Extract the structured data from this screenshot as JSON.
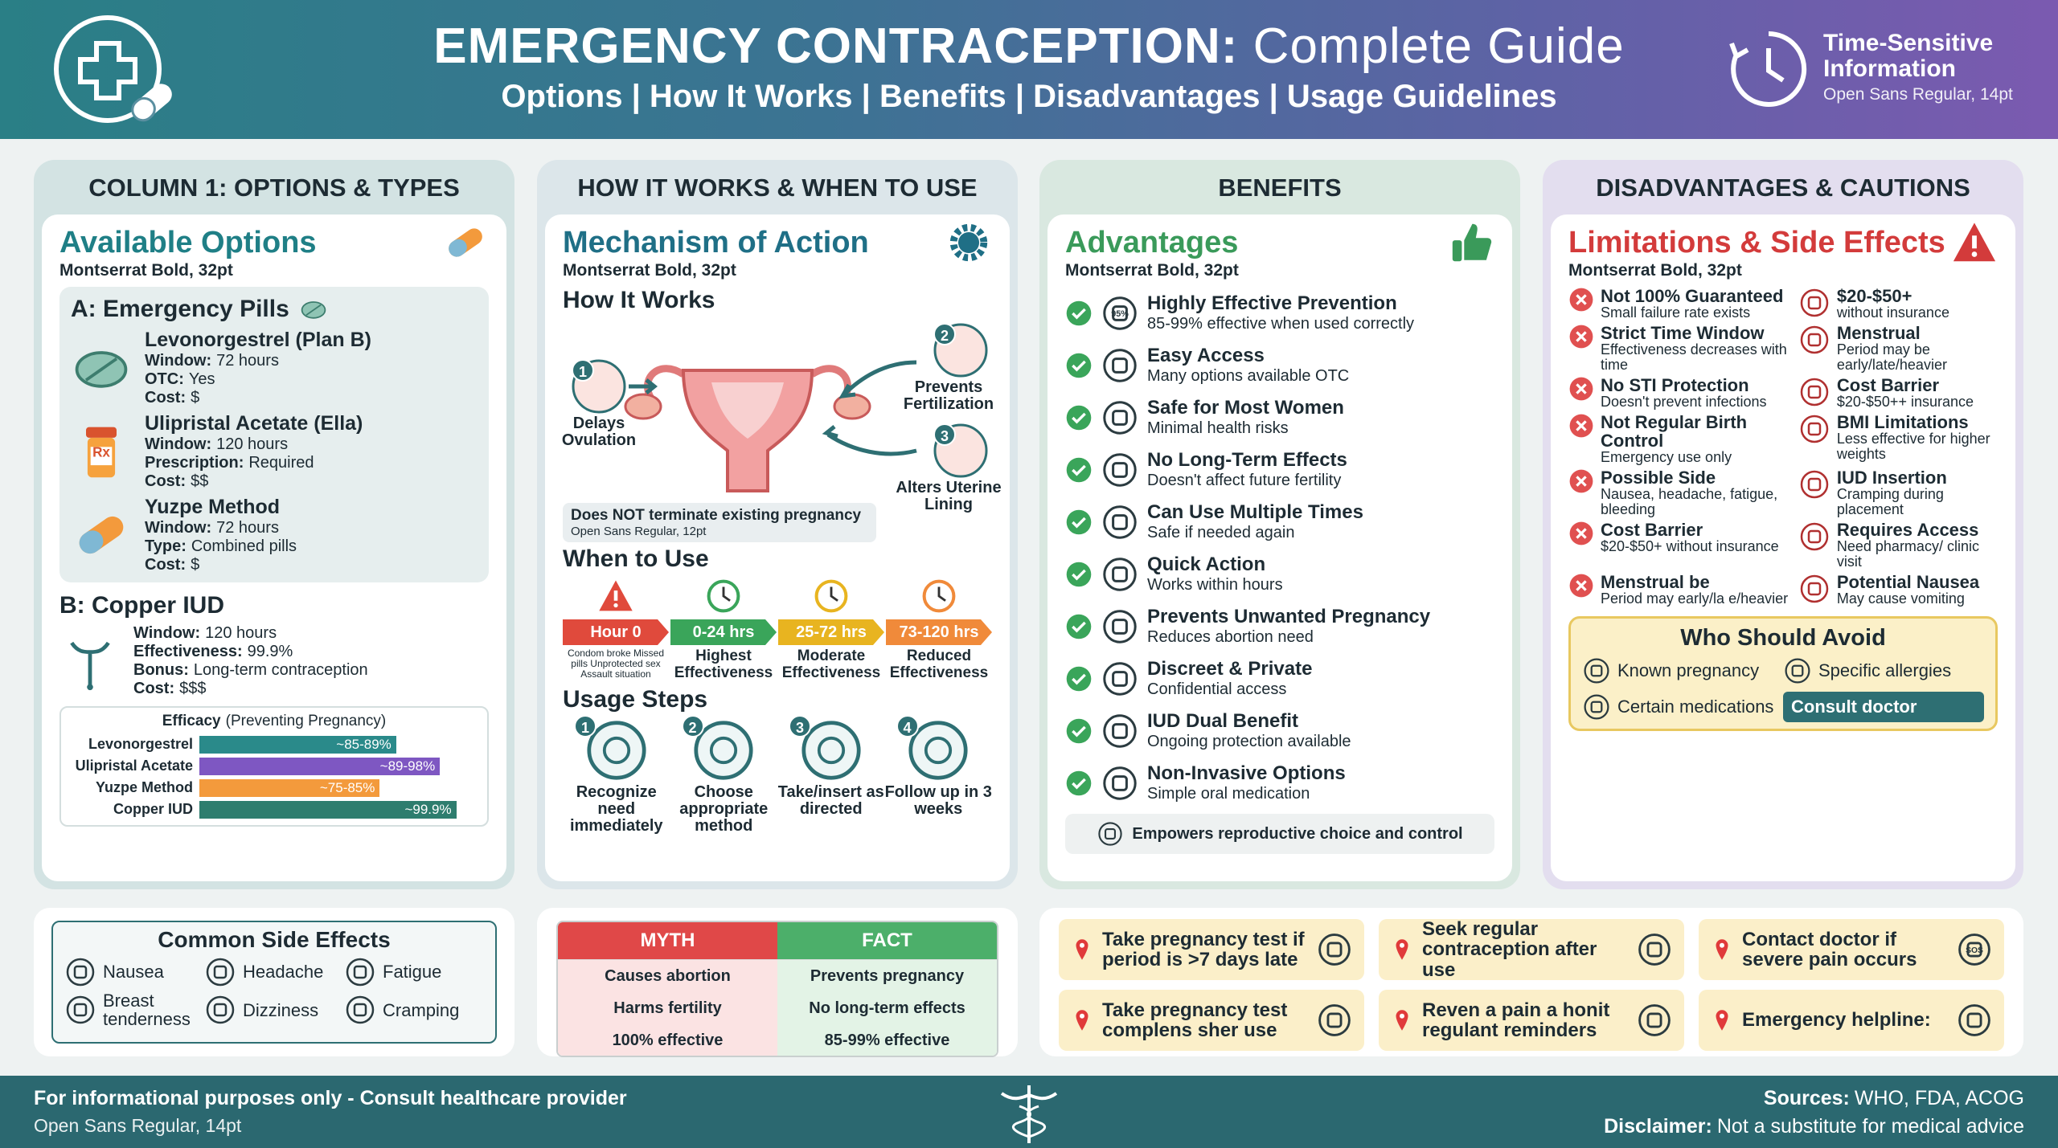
{
  "header": {
    "title_bold": "EMERGENCY CONTRACEPTION:",
    "title_rest": "Complete Guide",
    "subtitle": "Options | How It Works | Benefits | Disadvantages | Usage Guidelines",
    "badge_title": "Time-Sensitive Information",
    "badge_note": "Open Sans Regular, 14pt"
  },
  "options": {
    "header": "COLUMN 1: OPTIONS & TYPES",
    "title": "Available Options",
    "font_note": "Montserrat Bold, 32pt",
    "pills_title": "A: Emergency Pills",
    "pills": [
      {
        "name": "Levonorgestrel (Plan B)",
        "lines": [
          {
            "key": "Window:",
            "value": "72 hours"
          },
          {
            "key": "OTC:",
            "value": "Yes"
          },
          {
            "key": "Cost:",
            "value": "$"
          }
        ]
      },
      {
        "name": "Ulipristal Acetate (Ella)",
        "icon_text": "Rx",
        "lines": [
          {
            "key": "Window:",
            "value": "120 hours"
          },
          {
            "key": "Prescription:",
            "value": "Required"
          },
          {
            "key": "Cost:",
            "value": "$$"
          }
        ]
      },
      {
        "name": "Yuzpe Method",
        "lines": [
          {
            "key": "Window:",
            "value": "72 hours"
          },
          {
            "key": "Type:",
            "value": "Combined pills"
          },
          {
            "key": "Cost:",
            "value": "$"
          }
        ]
      }
    ],
    "iud_title": "B: Copper IUD",
    "iud_lines": [
      {
        "key": "Window:",
        "value": "120 hours"
      },
      {
        "key": "Effectiveness:",
        "value": "99.9%"
      },
      {
        "key": "Bonus:",
        "value": "Long-term contraception"
      },
      {
        "key": "Cost:",
        "value": "$$$"
      }
    ],
    "efficacy_title": "Efficacy",
    "efficacy_note": "(Preventing Pregnancy)",
    "efficacy": [
      {
        "name": "Levonorgestrel",
        "label": "~85-89%",
        "color": "#2a8a8a"
      },
      {
        "name": "Ulipristal Acetate",
        "label": "~89-98%",
        "color": "#7e57c2"
      },
      {
        "name": "Yuzpe Method",
        "label": "~75-85%",
        "color": "#f39a3c"
      },
      {
        "name": "Copper IUD",
        "label": "~99.9%",
        "color": "#2e7d6e"
      }
    ]
  },
  "mechanism": {
    "header": "HOW IT WORKS & WHEN TO USE",
    "title": "Mechanism of Action",
    "font_note": "Montserrat Bold, 32pt",
    "how_title": "How It Works",
    "actions": [
      {
        "number": 1,
        "label": "Delays Ovulation"
      },
      {
        "number": 2,
        "label": "Prevents Fertilization"
      },
      {
        "number": 3,
        "label": "Alters Uterine Lining"
      }
    ],
    "note": "Does NOT terminate existing pregnancy",
    "note_font": "Open Sans Regular, 12pt",
    "when_title": "When to Use",
    "timeline": [
      {
        "label": "Hour 0",
        "desc": "Condom broke Missed pills Unprotected sex Assault situation"
      },
      {
        "label": "0-24 hrs",
        "desc": "Highest Effectiveness"
      },
      {
        "label": "25-72 hrs",
        "desc": "Moderate Effectiveness"
      },
      {
        "label": "73-120 hrs",
        "desc": "Reduced Effectiveness"
      }
    ],
    "steps_title": "Usage Steps",
    "steps": [
      {
        "number": 1,
        "label": "Recognize need immediately"
      },
      {
        "number": 2,
        "label": "Choose appropriate method"
      },
      {
        "number": 3,
        "label": "Take/insert as directed"
      },
      {
        "number": 4,
        "label": "Follow up in 3 weeks"
      }
    ]
  },
  "benefits": {
    "header": "BENEFITS",
    "title": "Advantages",
    "font_note": "Montserrat Bold, 32pt",
    "items": [
      {
        "title": "Highly Effective Prevention",
        "desc": "85-99% effective when used correctly",
        "icon_text": "95%"
      },
      {
        "title": "Easy Access",
        "desc": "Many options available OTC"
      },
      {
        "title": "Safe for Most Women",
        "desc": "Minimal health risks"
      },
      {
        "title": "No Long-Term Effects",
        "desc": "Doesn't affect future fertility"
      },
      {
        "title": "Can Use Multiple Times",
        "desc": "Safe if needed again"
      },
      {
        "title": "Quick Action",
        "desc": "Works within hours"
      },
      {
        "title": "Prevents Unwanted Pregnancy",
        "desc": "Reduces abortion need"
      },
      {
        "title": "Discreet & Private",
        "desc": "Confidential access"
      },
      {
        "title": "IUD Dual Benefit",
        "desc": "Ongoing protection available"
      },
      {
        "title": "Non-Invasive Options",
        "desc": "Simple oral medication"
      }
    ],
    "footer": "Empowers reproductive choice and control"
  },
  "disadvantages": {
    "header": "DISADVANTAGES & CAUTIONS",
    "title": "Limitations & Side Effects",
    "font_note": "Montserrat Bold, 32pt",
    "left": [
      {
        "title": "Not 100% Guaranteed",
        "desc": "Small failure rate exists"
      },
      {
        "title": "Strict Time Window",
        "desc": "Effectiveness decreases with time"
      },
      {
        "title": "No STI Protection",
        "desc": "Doesn't prevent infections"
      },
      {
        "title": "Not Regular Birth Control",
        "desc": "Emergency use only"
      },
      {
        "title": "Possible Side",
        "desc": "Nausea, headache, fatigue, bleeding"
      },
      {
        "title": "Cost Barrier",
        "desc": "$20-$50+ without insurance"
      },
      {
        "title": "Menstrual be",
        "desc": "Period may early/la e/heavier"
      }
    ],
    "right": [
      {
        "title": "$20-$50+",
        "desc": "without insurance"
      },
      {
        "title": "Menstrual",
        "desc": "Period may be early/late/heavier"
      },
      {
        "title": "Cost Barrier",
        "desc": "$20-$50++ insurance"
      },
      {
        "title": "BMI Limitations",
        "desc": "Less effective for higher weights"
      },
      {
        "title": "IUD Insertion",
        "desc": "Cramping during placement"
      },
      {
        "title": "Requires Access",
        "desc": "Need pharmacy/ clinic visit"
      },
      {
        "title": "Potential Nausea",
        "desc": "May cause vomiting"
      }
    ],
    "avoid_title": "Who Should Avoid",
    "avoid": [
      "Known pregnancy",
      "Specific allergies",
      "Certain medications",
      "Consult doctor"
    ]
  },
  "side_effects": {
    "title": "Common Side Effects",
    "items": [
      "Nausea",
      "Headache",
      "Fatigue",
      "Breast tenderness",
      "Dizziness",
      "Cramping"
    ]
  },
  "myth_fact": {
    "myth_header": "MYTH",
    "fact_header": "FACT",
    "rows": [
      [
        "Causes abortion",
        "Prevents pregnancy"
      ],
      [
        "Harms fertility",
        "No long-term effects"
      ],
      [
        "100% effective",
        "85-99% effective"
      ]
    ]
  },
  "tips": [
    {
      "text": "Take pregnancy test if period is >7 days late"
    },
    {
      "text": "Seek regular contraception after use"
    },
    {
      "text": "Contact doctor if severe pain occurs",
      "icon_text": "SOS"
    },
    {
      "text": "Take pregnancy test complens sher use"
    },
    {
      "text": "Reven a pain a honit regulant reminders"
    },
    {
      "text": "Emergency helpline:"
    }
  ],
  "footer": {
    "notice": "For informational purposes only - Consult healthcare provider",
    "notice_font": "Open Sans Regular, 14pt",
    "sources_key": "Sources:",
    "sources": "WHO, FDA, ACOG",
    "disclaimer_key": "Disclaimer:",
    "disclaimer": "Not a substitute for medical advice"
  }
}
